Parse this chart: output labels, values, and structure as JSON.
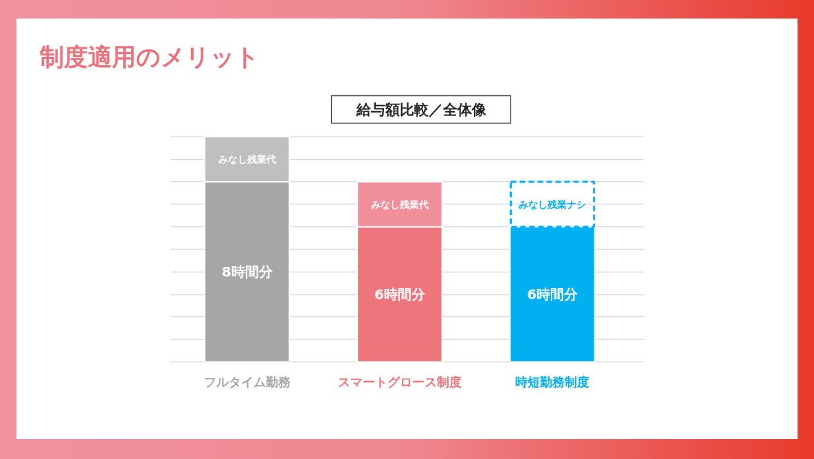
{
  "chart_data": {
    "type": "bar",
    "title": "制度適用のメリット",
    "subtitle": "給与額比較／全体像",
    "categories": [
      "フルタイム勤務",
      "スマートグロース制度",
      "時短勤務制度"
    ],
    "stacked": true,
    "grid": "y",
    "tick_labels": "x",
    "ylim": [
      0,
      10
    ],
    "yticks": [
      {
        "value": 0,
        "label": null
      },
      {
        "value": 1,
        "label": null
      },
      {
        "value": 2,
        "label": null
      },
      {
        "value": 3,
        "label": null
      },
      {
        "value": 4,
        "label": null
      },
      {
        "value": 5,
        "label": null
      },
      {
        "value": 6,
        "label": null
      },
      {
        "value": 7,
        "label": null
      },
      {
        "value": 8,
        "label": null
      },
      {
        "value": 9,
        "label": null
      },
      {
        "value": 10,
        "label": null
      }
    ],
    "series": [
      {
        "colors": [
          "#a6a6a6",
          "#ee757b",
          "#00b0f0"
        ],
        "values": [
          8,
          6,
          6
        ],
        "value_labels": [
          "8時間分",
          "6時間分",
          "6時間分"
        ]
      },
      {
        "colors": [
          "#bfbfbf",
          "#f08f99",
          null
        ],
        "values": [
          2,
          2,
          null
        ],
        "value_labels": [
          "みなし残業代",
          "みなし残業代",
          null
        ]
      },
      {
        "color": "#00b0f0",
        "line_style": "dashed",
        "values": [
          null,
          null,
          2
        ],
        "value_labels": [
          null,
          null,
          "みなし残業ナシ"
        ]
      }
    ]
  }
}
